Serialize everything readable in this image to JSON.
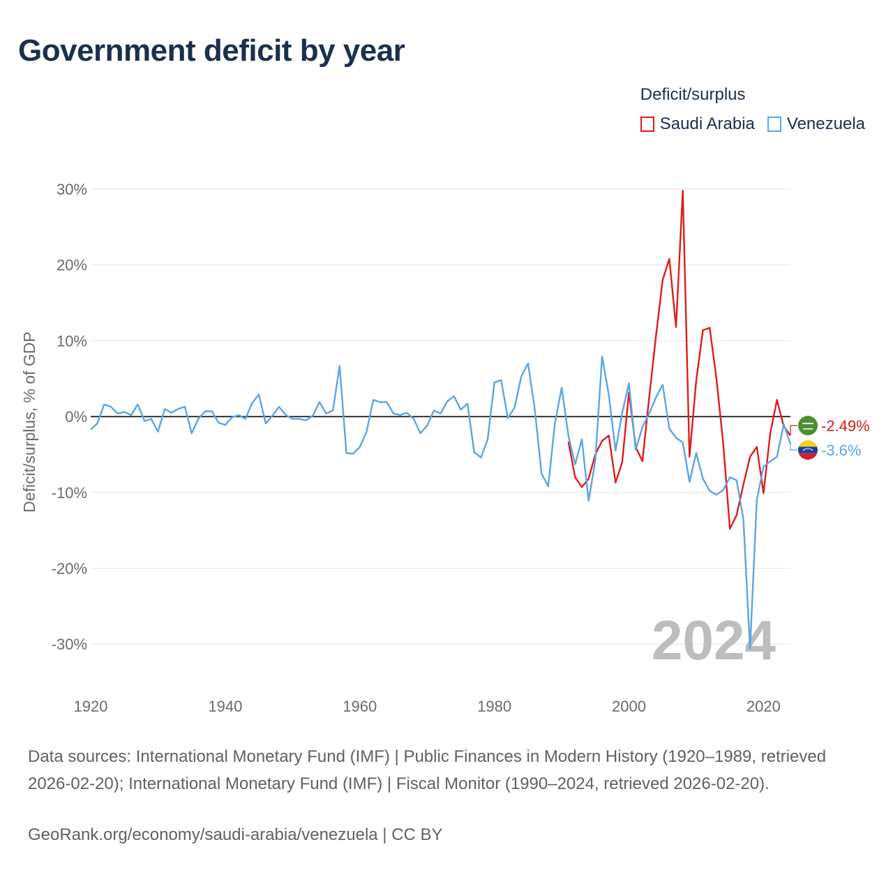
{
  "title": "Government deficit by year",
  "legend": {
    "title": "Deficit/surplus",
    "items": [
      {
        "label": "Saudi Arabia",
        "color": "#e01b1b"
      },
      {
        "label": "Venezuela",
        "color": "#5aa5e6"
      }
    ]
  },
  "source": {
    "text": "Data sources: International Monetary Fund (IMF) | Public Finances in Modern History (1920–1989, retrieved 2026-02-20); International Monetary Fund (IMF) | Fiscal Monitor (1990–2024, retrieved 2026-02-20).",
    "link": "GeoRank.org/economy/saudi-arabia/venezuela | CC BY"
  },
  "chart_data": {
    "type": "line",
    "title": "Government deficit by year",
    "xlabel": "",
    "ylabel": "Deficit/surplus, % of GDP",
    "xlim": [
      1920,
      2024
    ],
    "ylim": [
      -35,
      30
    ],
    "x_ticks": [
      1920,
      1940,
      1960,
      1980,
      2000,
      2020
    ],
    "y_ticks": [
      30,
      20,
      10,
      0,
      -10,
      -20,
      -30
    ],
    "y_tick_labels": [
      "30%",
      "20%",
      "10%",
      "0%",
      "-10%",
      "-20%",
      "-30%"
    ],
    "current_year_label": "2024",
    "series": [
      {
        "name": "Saudi Arabia",
        "color": "#e01b1b",
        "end_label": "-2.49%",
        "x": [
          1991,
          1992,
          1993,
          1994,
          1995,
          1996,
          1997,
          1998,
          1999,
          2000,
          2001,
          2002,
          2003,
          2004,
          2005,
          2006,
          2007,
          2008,
          2009,
          2010,
          2011,
          2012,
          2013,
          2014,
          2015,
          2016,
          2017,
          2018,
          2019,
          2020,
          2021,
          2022,
          2023,
          2024
        ],
        "values": [
          -3.3,
          -8.0,
          -9.3,
          -8.2,
          -5.0,
          -3.2,
          -2.5,
          -8.7,
          -6.0,
          3.2,
          -4.0,
          -5.9,
          2.5,
          10.5,
          18.0,
          20.8,
          11.8,
          29.8,
          -5.3,
          4.8,
          11.4,
          11.7,
          5.0,
          -3.5,
          -14.8,
          -13.0,
          -9.0,
          -5.3,
          -4.0,
          -10.1,
          -2.2,
          2.2,
          -1.3,
          -2.49
        ]
      },
      {
        "name": "Venezuela",
        "color": "#5aa5e6",
        "end_label": "-3.6%",
        "x": [
          1920,
          1921,
          1922,
          1923,
          1924,
          1925,
          1926,
          1927,
          1928,
          1929,
          1930,
          1931,
          1932,
          1933,
          1934,
          1935,
          1936,
          1937,
          1938,
          1939,
          1940,
          1941,
          1942,
          1943,
          1944,
          1945,
          1946,
          1947,
          1948,
          1949,
          1950,
          1951,
          1952,
          1953,
          1954,
          1955,
          1956,
          1957,
          1958,
          1959,
          1960,
          1961,
          1962,
          1963,
          1964,
          1965,
          1966,
          1967,
          1968,
          1969,
          1970,
          1971,
          1972,
          1973,
          1974,
          1975,
          1976,
          1977,
          1978,
          1979,
          1980,
          1981,
          1982,
          1983,
          1984,
          1985,
          1986,
          1987,
          1988,
          1989,
          1990,
          1991,
          1992,
          1993,
          1994,
          1995,
          1996,
          1997,
          1998,
          1999,
          2000,
          2001,
          2002,
          2003,
          2004,
          2005,
          2006,
          2007,
          2008,
          2009,
          2010,
          2011,
          2012,
          2013,
          2014,
          2015,
          2016,
          2017,
          2018,
          2019,
          2020,
          2021,
          2022,
          2023,
          2024
        ],
        "values": [
          -1.7,
          -0.9,
          1.6,
          1.3,
          0.4,
          0.6,
          0.2,
          1.6,
          -0.6,
          -0.3,
          -2.0,
          1.0,
          0.5,
          1.0,
          1.3,
          -2.2,
          -0.3,
          0.7,
          0.7,
          -0.8,
          -1.1,
          -0.1,
          0.2,
          -0.3,
          1.8,
          2.9,
          -0.9,
          0.1,
          1.3,
          0.2,
          -0.3,
          -0.3,
          -0.5,
          0.1,
          1.9,
          0.4,
          0.8,
          6.7,
          -4.8,
          -4.9,
          -4.0,
          -2.0,
          2.2,
          1.9,
          1.9,
          0.4,
          0.2,
          0.5,
          -0.3,
          -2.2,
          -1.2,
          0.8,
          0.4,
          2.0,
          2.7,
          0.9,
          1.7,
          -4.7,
          -5.4,
          -3.0,
          4.5,
          4.8,
          -0.2,
          1.2,
          5.3,
          7.0,
          1.0,
          -7.5,
          -9.2,
          -0.8,
          3.8,
          -2.5,
          -6.3,
          -3.0,
          -11.1,
          -5.8,
          7.9,
          2.9,
          -4.5,
          0.5,
          4.4,
          -4.4,
          -1.4,
          0.4,
          2.5,
          4.2,
          -1.6,
          -2.8,
          -3.4,
          -8.6,
          -4.8,
          -8.2,
          -9.8,
          -10.3,
          -9.7,
          -8.0,
          -8.4,
          -13.5,
          -30.6,
          -11.0,
          -6.6,
          -5.9,
          -5.3,
          -1.0,
          -3.6
        ]
      }
    ]
  }
}
